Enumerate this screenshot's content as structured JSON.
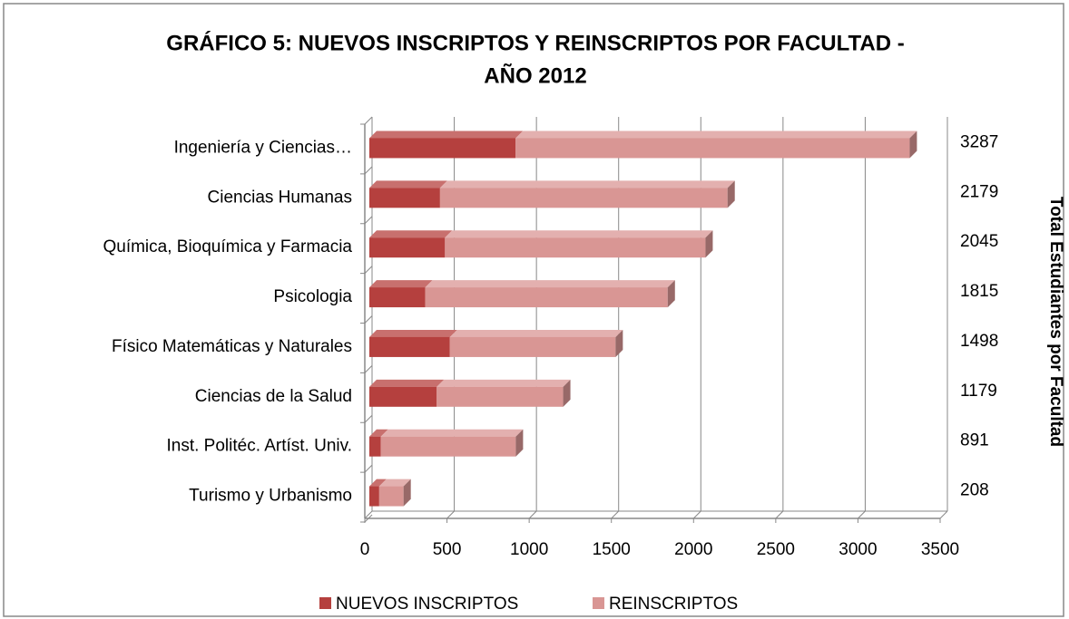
{
  "chart_data": {
    "type": "bar3d_stacked_horizontal",
    "title": [
      "GRÁFICO 5: NUEVOS INSCRIPTOS Y REINSCRIPTOS POR FACULTAD -",
      "AÑO 2012"
    ],
    "categories": [
      "Ingeniería y Ciencias…",
      "Ciencias Humanas",
      "Química, Bioquímica y Farmacia",
      "Psicologia",
      "Físico Matemáticas y Naturales",
      "Ciencias de la Salud",
      "Inst. Politéc. Artíst. Univ.",
      "Turismo y Urbanismo"
    ],
    "series": [
      {
        "name": "NUEVOS INSCRIPTOS",
        "color": "#b5403e",
        "values": [
          890,
          430,
          460,
          340,
          490,
          410,
          70,
          60
        ]
      },
      {
        "name": "REINSCRIPTOS",
        "color": "#d99694",
        "values": [
          2397,
          1749,
          1585,
          1475,
          1008,
          769,
          821,
          148
        ]
      }
    ],
    "totals": [
      3287,
      2179,
      2045,
      1815,
      1498,
      1179,
      891,
      208
    ],
    "y2_label": "Total Estudiantes por Facultad",
    "xlim": [
      0,
      3500
    ],
    "xticks": [
      0,
      500,
      1000,
      1500,
      2000,
      2500,
      3000,
      3500
    ],
    "grid": true,
    "legend": "bottom"
  }
}
